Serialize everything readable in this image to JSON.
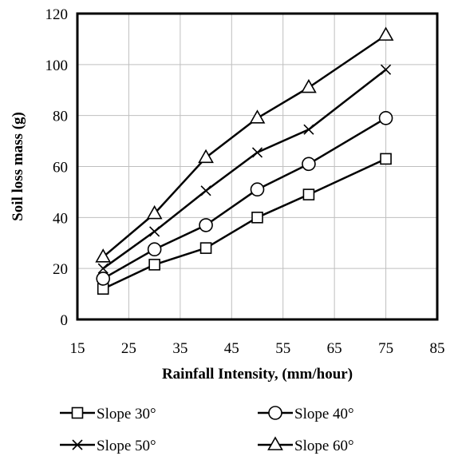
{
  "chart_data": {
    "type": "line",
    "xlabel": "Rainfall Intensity, (mm/hour)",
    "ylabel": "Soil loss mass (g)",
    "xlim": [
      15,
      85
    ],
    "ylim": [
      0,
      120
    ],
    "xticks": [
      15,
      25,
      35,
      45,
      55,
      65,
      75,
      85
    ],
    "yticks": [
      0,
      20,
      40,
      60,
      80,
      100,
      120
    ],
    "grid": true,
    "legend_position": "bottom",
    "x": [
      20,
      30,
      40,
      50,
      60,
      75
    ],
    "series": [
      {
        "name": "Slope 30°",
        "marker": "square",
        "values": [
          12,
          21.5,
          28,
          40,
          49,
          63
        ]
      },
      {
        "name": "Slope 40°",
        "marker": "circle",
        "values": [
          16,
          27.5,
          37,
          51,
          61,
          79
        ]
      },
      {
        "name": "Slope 50°",
        "marker": "x",
        "values": [
          20,
          34.5,
          50.5,
          65.5,
          74.5,
          98
        ]
      },
      {
        "name": "Slope 60°",
        "marker": "triangle",
        "values": [
          24.5,
          41.5,
          63.5,
          79,
          91,
          111.5
        ]
      }
    ]
  }
}
